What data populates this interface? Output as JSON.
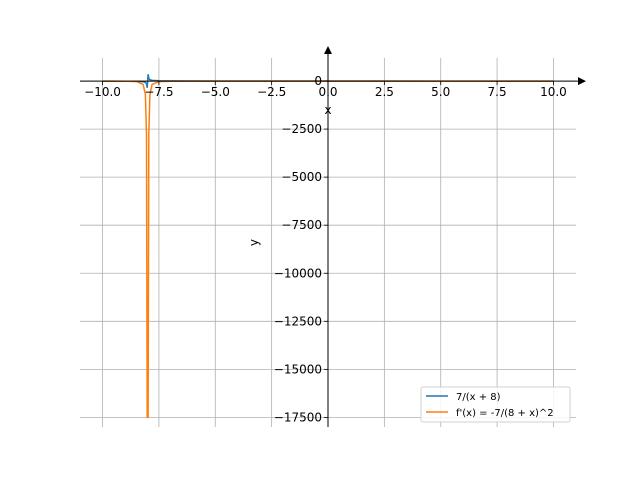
{
  "chart_data": {
    "type": "line",
    "xlabel": "x",
    "ylabel": "y",
    "xlim": [
      -11.0,
      11.0
    ],
    "ylim": [
      -18000,
      1200
    ],
    "grid": true,
    "legend_position": "bottom-right",
    "x_ticks": [
      -10.0,
      -7.5,
      -5.0,
      -2.5,
      0.0,
      2.5,
      5.0,
      7.5,
      10.0
    ],
    "x_tick_labels": [
      "−10.0",
      "−7.5",
      "−5.0",
      "−2.5",
      "0.0",
      "2.5",
      "5.0",
      "7.5",
      "10.0"
    ],
    "y_ticks": [
      0,
      -2500,
      -5000,
      -7500,
      -10000,
      -12500,
      -15000,
      -17500
    ],
    "y_tick_labels": [
      "0",
      "−2500",
      "−5000",
      "−7500",
      "−10000",
      "−12500",
      "−15000",
      "−17500"
    ],
    "series": [
      {
        "name": "7/(x + 8)",
        "color": "#1f77b4",
        "x": [
          -10.0,
          -9.0,
          -8.5,
          -8.2,
          -8.1,
          -8.05,
          -8.02,
          -7.98,
          -7.95,
          -7.9,
          -7.8,
          -7.5,
          -7.0,
          -5.0,
          0.0,
          5.0,
          10.0
        ],
        "y": [
          -3.5,
          -7.0,
          -14.0,
          -35.0,
          -70.0,
          -140.0,
          -350.0,
          350.0,
          140.0,
          70.0,
          35.0,
          14.0,
          7.0,
          2.33,
          0.88,
          0.54,
          0.39
        ]
      },
      {
        "name": "f'(x) = -7/(8 + x)^2",
        "color": "#ff7f0e",
        "x": [
          -10.0,
          -9.0,
          -8.5,
          -8.2,
          -8.1,
          -8.05,
          -8.02,
          -7.98,
          -7.95,
          -7.9,
          -7.8,
          -7.5,
          -7.0,
          -5.0,
          0.0,
          5.0,
          10.0
        ],
        "y": [
          -1.75,
          -7.0,
          -28.0,
          -175.0,
          -700.0,
          -2800.0,
          -17500.0,
          -17500.0,
          -2800.0,
          -700.0,
          -175.0,
          -28.0,
          -7.0,
          -0.78,
          -0.11,
          -0.04,
          -0.02
        ]
      }
    ]
  }
}
